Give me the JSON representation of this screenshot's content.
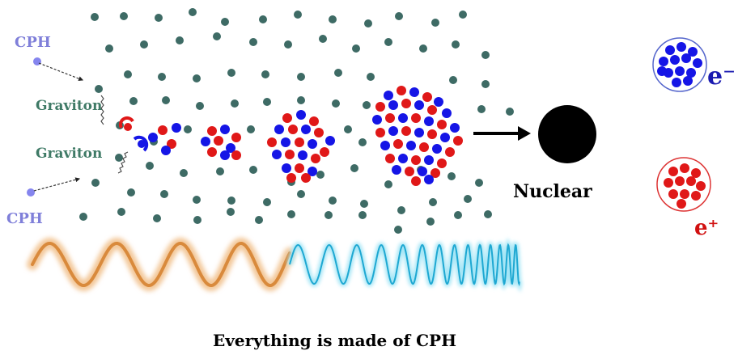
{
  "labels": {
    "cph_top": "CPH",
    "cph_bottom": "CPH",
    "graviton_top": "Graviton",
    "graviton_bottom": "Graviton",
    "nuclear": "Nuclear",
    "electron_symbol": "e⁻",
    "positron_symbol": "e⁺",
    "caption": "Everything is made of CPH"
  },
  "colors": {
    "background_dot": "#3e6b65",
    "blue_particle": "#1515e6",
    "red_particle": "#e01818",
    "cph_particle": "#8585ee",
    "cph_label": "#7f7fd9",
    "graviton_label": "#3f7a66",
    "nuclear": "#000000",
    "positron_label": "#d11010",
    "electron_label": "#1a1ab0",
    "low_freq_wave": "#e89a4a",
    "high_freq_wave": "#2ab2d6"
  }
}
